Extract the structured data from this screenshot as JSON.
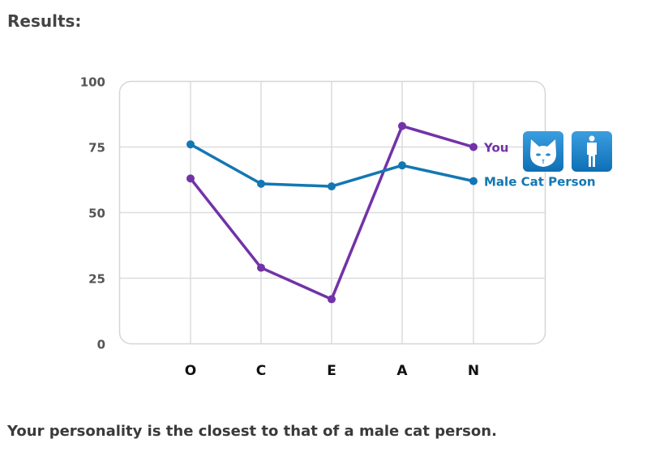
{
  "page": {
    "title": "Results:",
    "summary": "Your personality is the closest to that of a male cat person."
  },
  "chart_data": {
    "type": "line",
    "categories": [
      "O",
      "C",
      "E",
      "A",
      "N"
    ],
    "ylim": [
      0,
      100
    ],
    "yticks": [
      0,
      25,
      50,
      75,
      100
    ],
    "ytick_labels": [
      "0",
      "25",
      "50",
      "75",
      "100"
    ],
    "grid": true,
    "legend": "right-inline",
    "series": [
      {
        "name": "You",
        "color": "#7232a8",
        "values": [
          63,
          29,
          17,
          83,
          75
        ]
      },
      {
        "name": "Male Cat Person",
        "color": "#1377b4",
        "values": [
          76,
          61,
          60,
          68,
          62
        ]
      }
    ],
    "icons": [
      "cat-icon",
      "male-person-icon"
    ]
  }
}
